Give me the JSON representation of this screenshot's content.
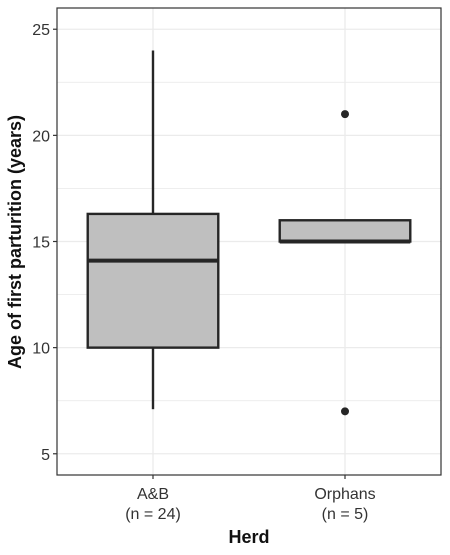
{
  "chart_data": {
    "type": "boxplot",
    "title": "",
    "xlabel": "Herd",
    "ylabel": "Age of first parturition (years)",
    "ylim": [
      4,
      26
    ],
    "yticks": [
      5,
      10,
      15,
      20,
      25
    ],
    "grid": true,
    "categories": [
      {
        "label_line1": "A&B",
        "label_line2": "(n = 24)"
      },
      {
        "label_line1": "Orphans",
        "label_line2": "(n = 5)"
      }
    ],
    "boxes": [
      {
        "min": 7.1,
        "q1": 10.0,
        "median": 14.1,
        "q3": 16.3,
        "max": 24.0,
        "outliers": []
      },
      {
        "min": 15.0,
        "q1": 15.0,
        "median": 15.0,
        "q3": 16.0,
        "max": 16.0,
        "outliers": [
          21.0,
          7.0
        ]
      }
    ],
    "colors": {
      "box_fill": "#bfbfbf",
      "line": "#262626",
      "grid": "#ebebeb",
      "panel_border": "#333333"
    }
  }
}
